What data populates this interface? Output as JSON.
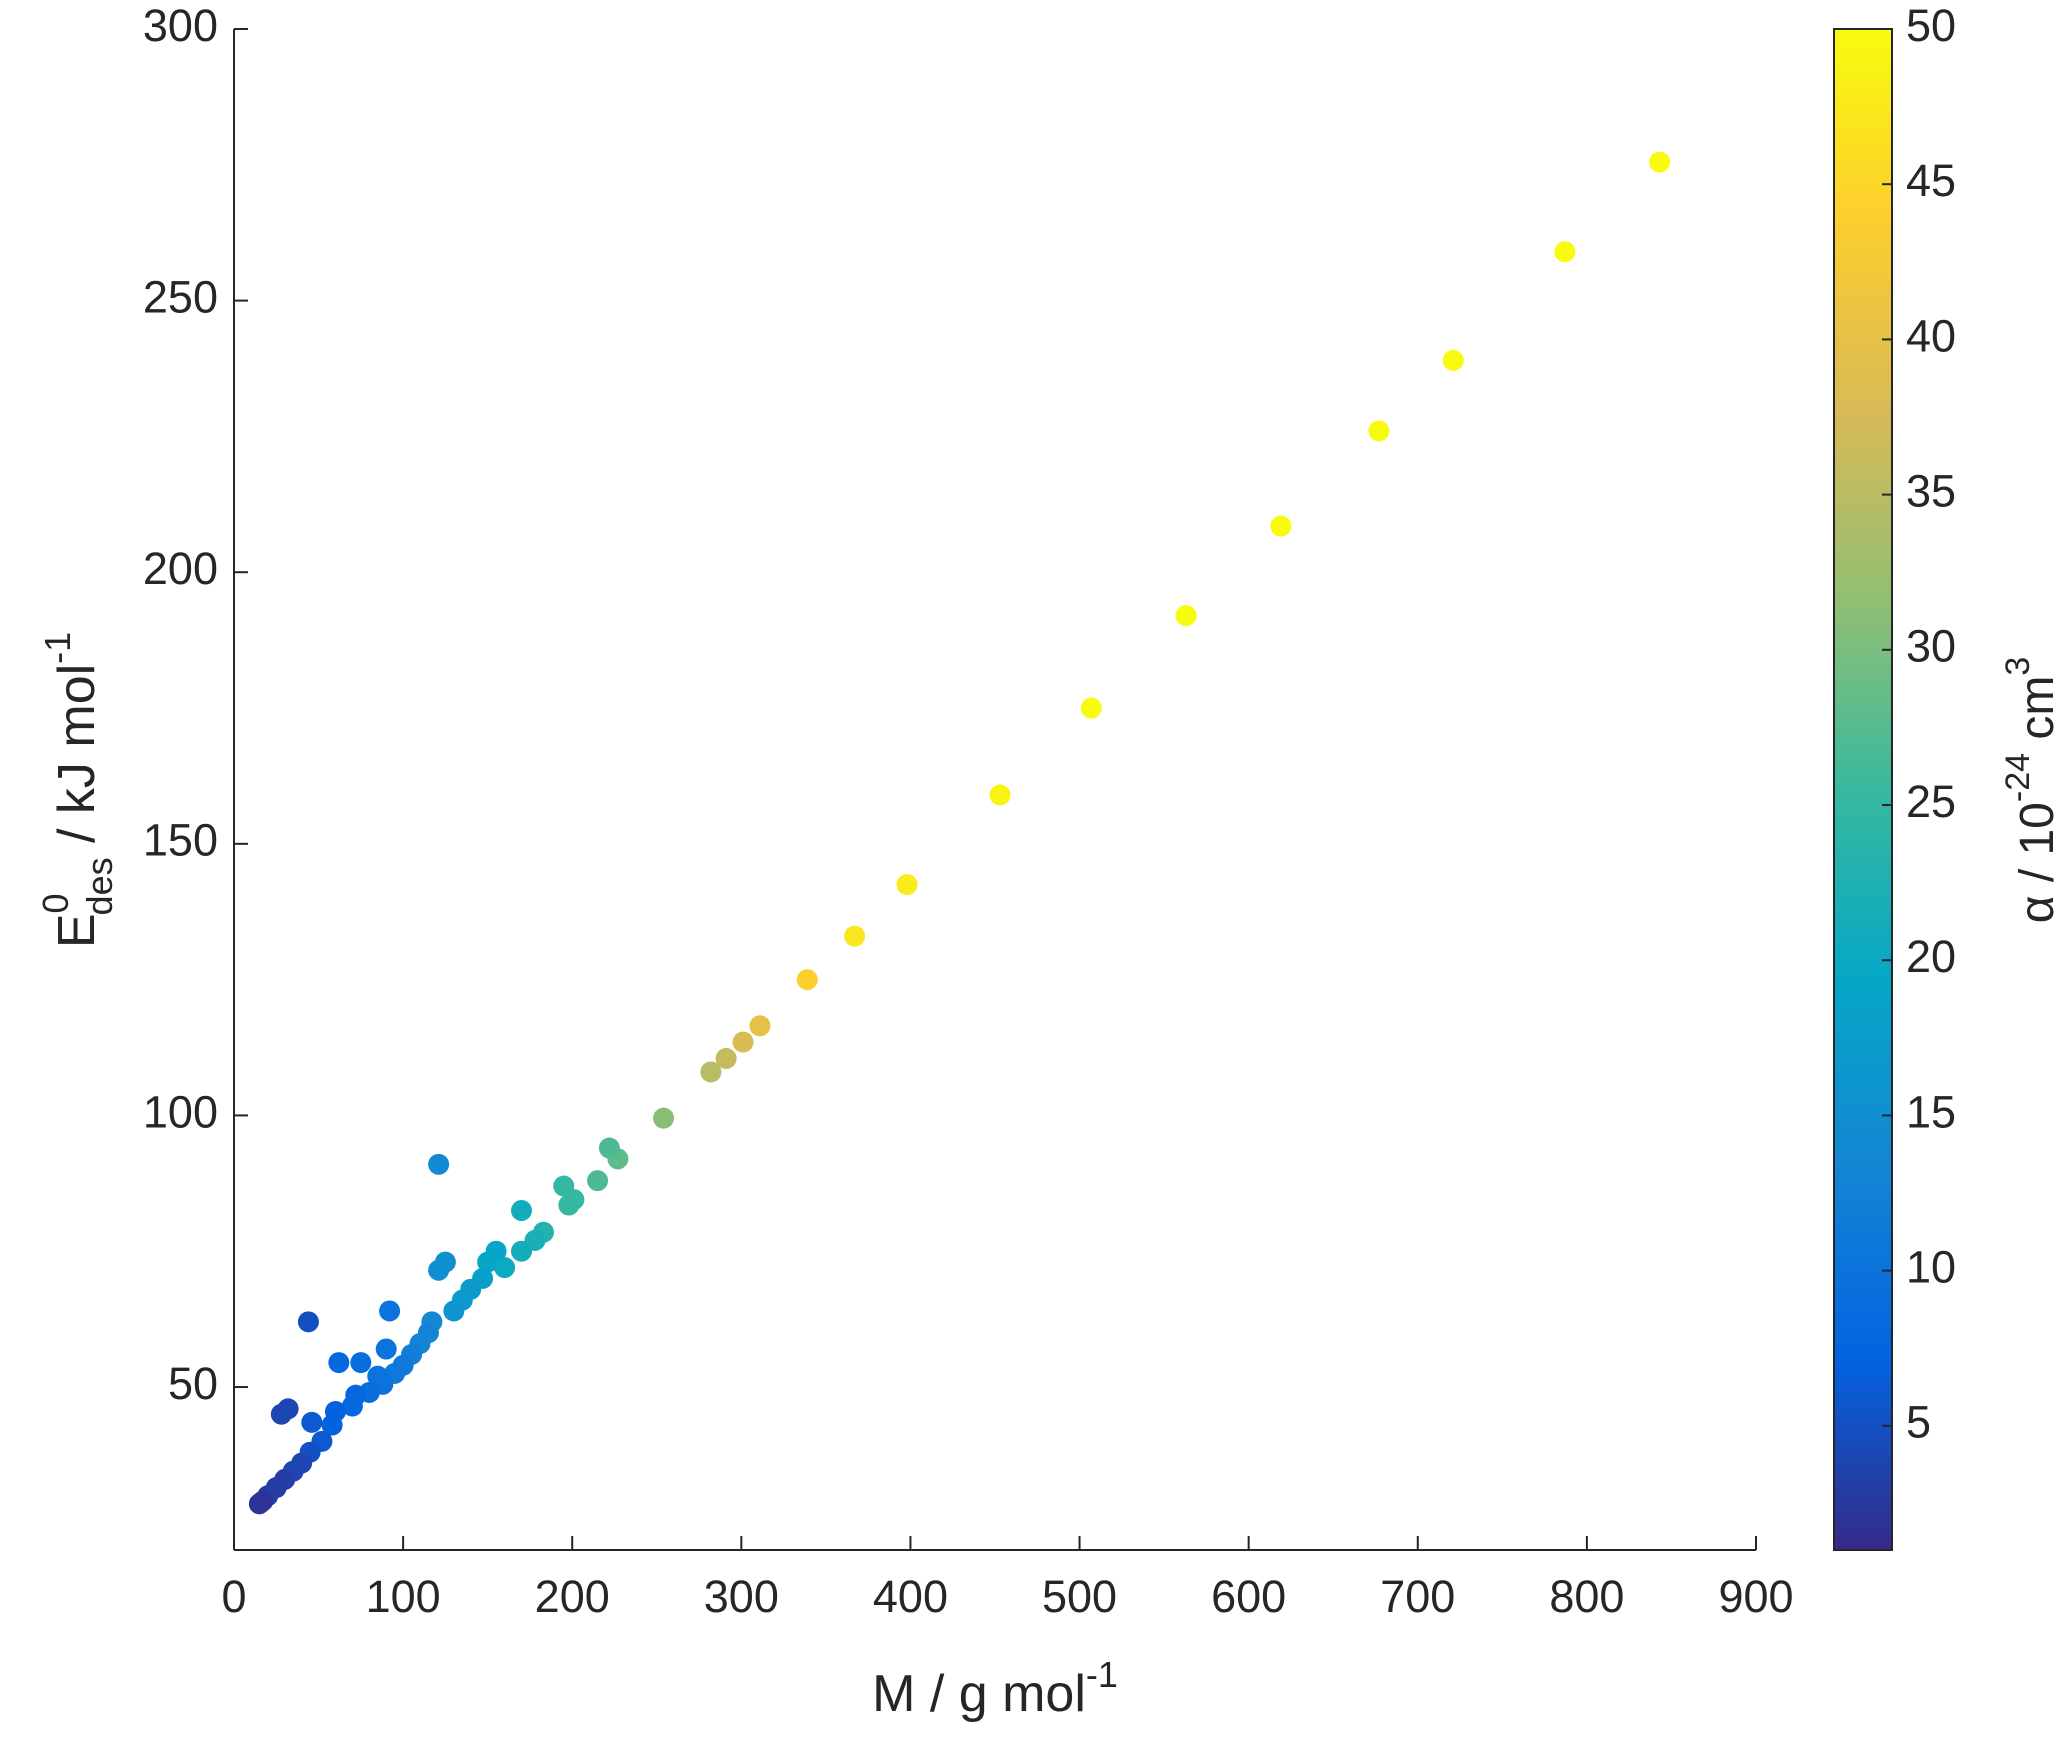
{
  "chart_data": {
    "type": "scatter",
    "x_label": {
      "base": "M / g mol",
      "sup": "-1"
    },
    "y_label": {
      "base": "E",
      "sup": "0",
      "sub": "des",
      "rest": " / kJ mol",
      "sup2": "-1"
    },
    "colorbar_label": {
      "base": "α / 10",
      "sup": "-24",
      "rest": " cm",
      "sup2": "3"
    },
    "colormap": "parula",
    "xlim": [
      0,
      900
    ],
    "xticks": [
      0,
      100,
      200,
      300,
      400,
      500,
      600,
      700,
      800,
      900
    ],
    "ylim": [
      20,
      300
    ],
    "yticks": [
      50,
      100,
      150,
      200,
      250,
      300
    ],
    "clim": [
      1,
      50
    ],
    "cticks": [
      5,
      10,
      15,
      20,
      25,
      30,
      35,
      40,
      45,
      50
    ],
    "x": [
      843,
      787,
      721,
      677,
      619,
      563,
      507,
      453,
      398,
      367,
      339,
      311,
      301,
      291,
      282,
      254,
      227,
      222,
      215,
      201,
      198,
      195,
      183,
      178,
      170,
      170,
      160,
      155,
      150,
      147,
      140,
      135,
      130,
      125,
      121,
      121,
      117,
      115,
      110,
      105,
      100,
      95,
      92,
      90,
      88,
      85,
      80,
      75,
      72,
      70,
      62,
      60,
      58,
      52,
      46,
      44,
      45,
      40,
      35,
      32,
      28,
      30,
      25,
      20,
      17,
      15
    ],
    "values": [
      275.5,
      259,
      239,
      226,
      208.5,
      192,
      175,
      159,
      142.5,
      133,
      125,
      116.5,
      113.5,
      110.5,
      108,
      99.5,
      92,
      94,
      88,
      84.5,
      83.5,
      87,
      78.5,
      77,
      82.5,
      75,
      72,
      75,
      73,
      70,
      68,
      66,
      64,
      73,
      71.5,
      91,
      62,
      60,
      58,
      56,
      54,
      52.5,
      64,
      57,
      50.5,
      52,
      49,
      54.5,
      48.5,
      46.5,
      54.5,
      45.5,
      43,
      40,
      43.5,
      62,
      38,
      36,
      34.5,
      46,
      45,
      33,
      31.5,
      30,
      29,
      28.5
    ],
    "color_values": [
      50,
      50,
      50,
      50,
      50,
      50,
      50,
      49,
      48,
      47,
      44,
      40,
      38,
      36,
      35,
      31,
      28,
      27,
      27,
      25,
      25,
      25,
      23,
      22,
      21,
      21,
      20,
      19,
      19,
      18,
      17,
      17,
      16,
      15,
      15,
      14,
      14,
      13,
      13,
      12,
      11,
      11,
      10,
      10,
      10,
      10,
      9,
      9,
      8,
      8,
      8,
      7,
      7,
      6,
      6,
      5,
      5,
      4,
      4,
      4,
      4,
      3,
      3,
      3,
      2,
      2
    ]
  }
}
